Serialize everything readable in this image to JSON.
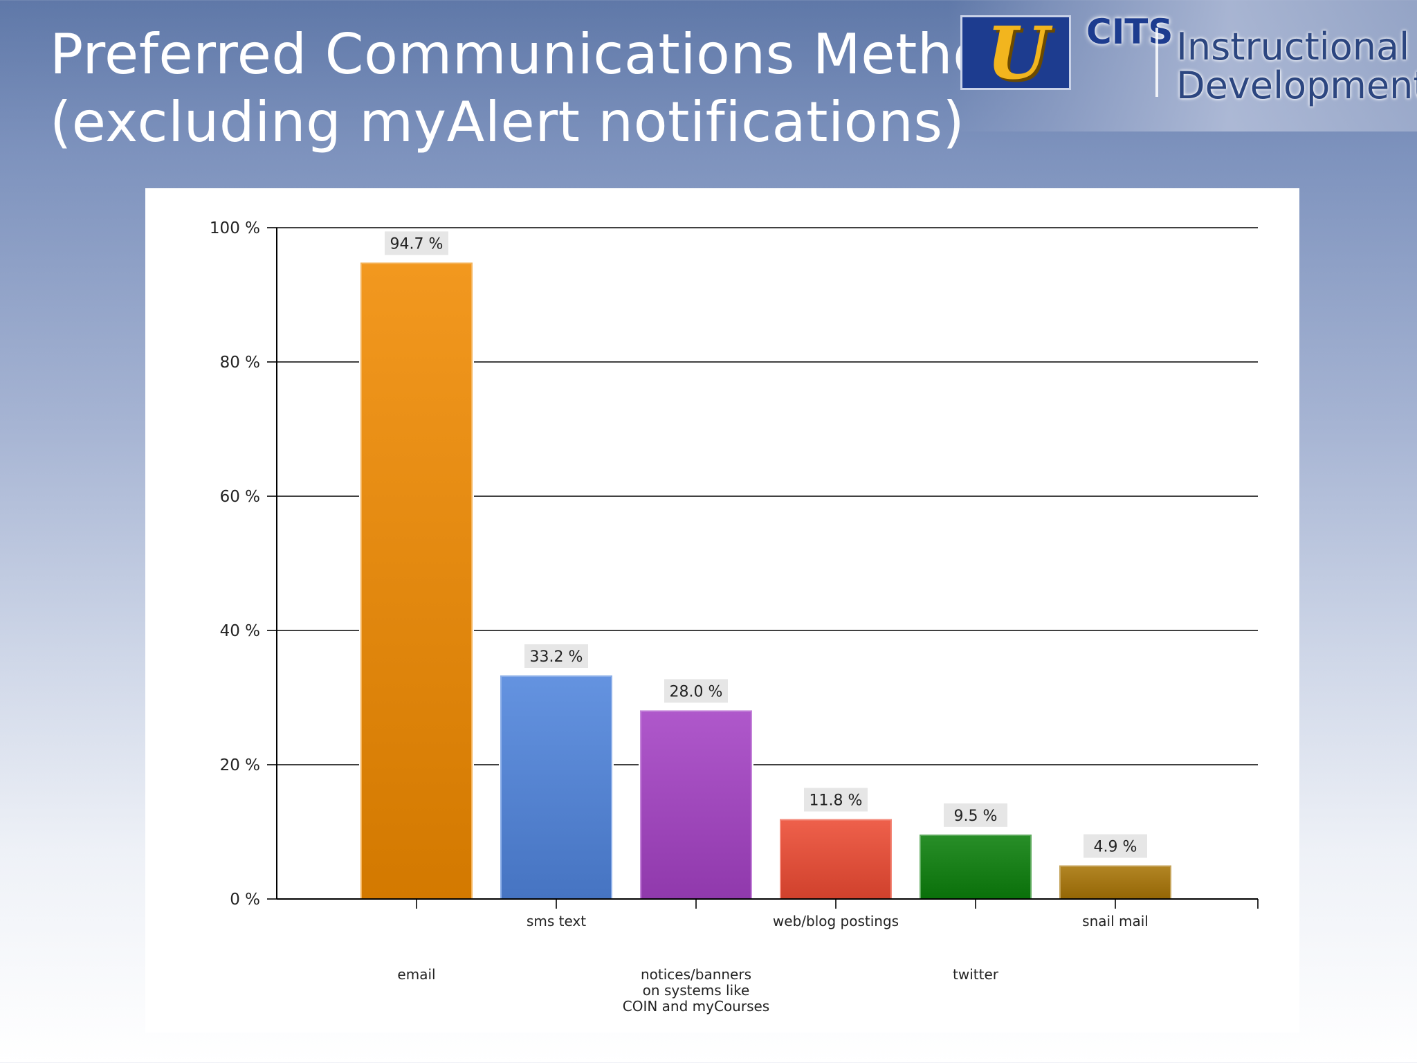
{
  "slide": {
    "title_line1": "Preferred Communications Methods",
    "title_line2": "(excluding myAlert notifications)"
  },
  "logo": {
    "emblem_letter": "U",
    "brand": "CITS",
    "unit_line1": "Instructional",
    "unit_line2": "Development"
  },
  "colors": {
    "email": "#f08a00",
    "sms_text": "#4f84dc",
    "notices": "#a441c4",
    "web_blog": "#ec4a32",
    "twitter": "#0b7f0b",
    "snail_mail": "#a87406"
  },
  "chart_data": {
    "type": "bar",
    "categories": [
      "email",
      "sms text",
      "notices/banners on systems like COIN and myCourses",
      "web/blog postings",
      "twitter",
      "snail mail"
    ],
    "category_label_lines": [
      [
        "email"
      ],
      [
        "sms text"
      ],
      [
        "notices/banners",
        "on systems like",
        "COIN and myCourses"
      ],
      [
        "web/blog postings"
      ],
      [
        "twitter"
      ],
      [
        "snail mail"
      ]
    ],
    "values": [
      94.7,
      33.2,
      28.0,
      11.8,
      9.5,
      4.9
    ],
    "value_labels": [
      "94.7 %",
      "33.2 %",
      "28.0 %",
      "11.8 %",
      "9.5 %",
      "4.9 %"
    ],
    "y_ticks": [
      0,
      20,
      40,
      60,
      80,
      100
    ],
    "y_tick_labels": [
      "0 %",
      "20 %",
      "40 %",
      "60 %",
      "80 %",
      "100 %"
    ],
    "ylim": [
      0,
      100
    ],
    "grid": true,
    "legend": "none",
    "bar_colors": [
      "#f08a00",
      "#4f84dc",
      "#a441c4",
      "#ec4a32",
      "#0b7f0b",
      "#a87406"
    ]
  }
}
